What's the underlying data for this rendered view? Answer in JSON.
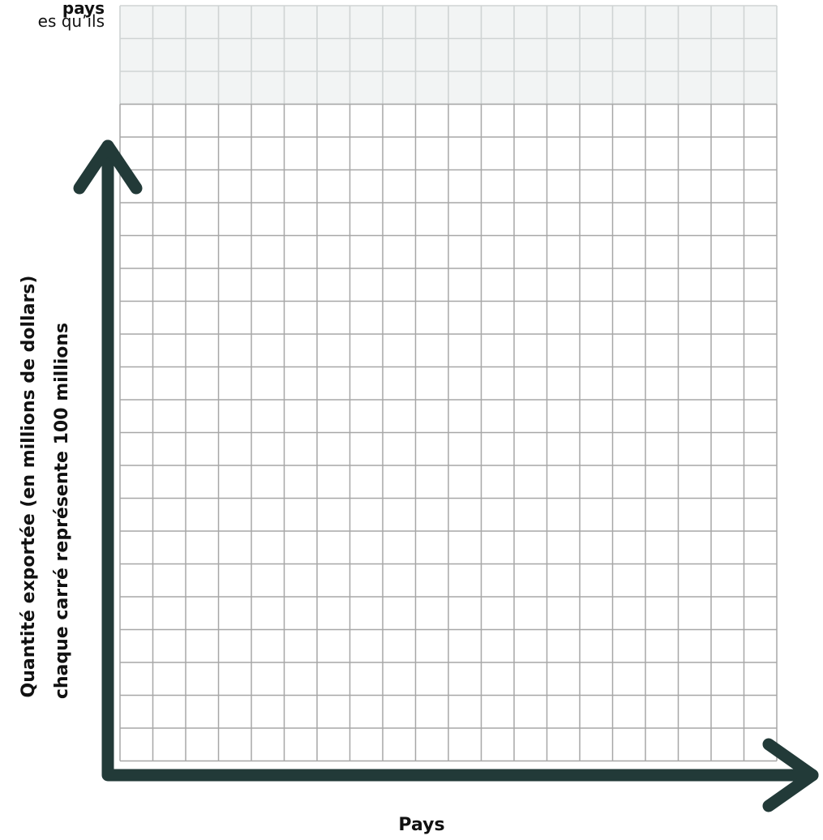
{
  "header": {
    "line1": "pays",
    "line2": "es qu’ils"
  },
  "chart_data": {
    "type": "bar",
    "categories": [],
    "series": [],
    "xlabel": "Pays",
    "ylabel": "Quantité exportée (en millions de dollars)",
    "ylabel_note": "chaque carré représente 100 millions",
    "grid": true,
    "grid_columns": 20,
    "grid_rows": 23,
    "grid_rows_faded_top": 3,
    "grid_unit": 100,
    "colors": {
      "axis": "#223a38",
      "grid": "#a7a7a7",
      "grid_faded": "#cfd3d3",
      "text": "#111111"
    }
  }
}
